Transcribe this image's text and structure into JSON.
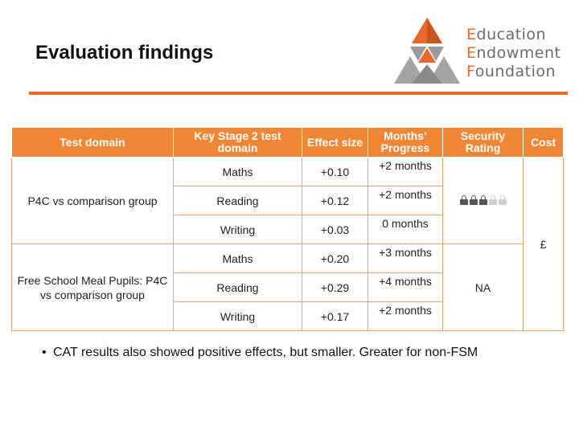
{
  "slide": {
    "title": "Evaluation findings"
  },
  "logo": {
    "lines": [
      {
        "cap": "E",
        "rest": "ducation"
      },
      {
        "cap": "E",
        "rest": "ndowment"
      },
      {
        "cap": "F",
        "rest": "oundation"
      }
    ],
    "colors": {
      "accent": "#e8692d",
      "grey": "#8a8a8a"
    }
  },
  "table": {
    "headers": [
      "Test domain",
      "Key Stage 2 test domain",
      "Effect size",
      "Months’ Progress",
      "Security Rating",
      "Cost"
    ],
    "groups": [
      {
        "label": "P4C vs comparison group",
        "security": {
          "filled": 3,
          "total": 5
        },
        "rows": [
          {
            "domain": "Maths",
            "effect": "+0.10",
            "months": "+2 months"
          },
          {
            "domain": "Reading",
            "effect": "+0.12",
            "months": "+2 months"
          },
          {
            "domain": "Writing",
            "effect": "+0.03",
            "months": "0 months"
          }
        ]
      },
      {
        "label": "Free School Meal Pupils: P4C vs comparison group",
        "security_text": "NA",
        "rows": [
          {
            "domain": "Maths",
            "effect": "+0.20",
            "months": "+3 months"
          },
          {
            "domain": "Reading",
            "effect": "+0.29",
            "months": "+4 months"
          },
          {
            "domain": "Writing",
            "effect": "+0.17",
            "months": "+2 months"
          }
        ]
      }
    ],
    "cost": "£",
    "colors": {
      "header_bg": "#f08534",
      "border": "#e9a273"
    }
  },
  "notes": {
    "bullet": "CAT results also showed positive effects, but smaller. Greater for non-FSM"
  }
}
